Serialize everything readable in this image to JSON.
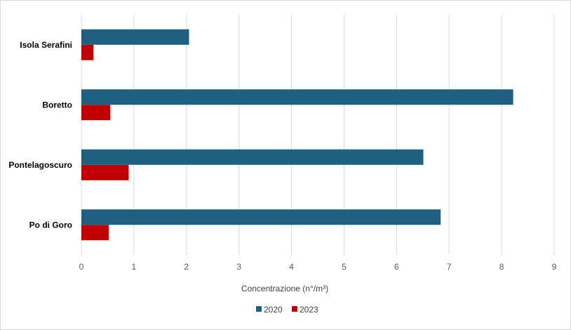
{
  "chart_data": {
    "type": "bar",
    "orientation": "horizontal",
    "categories": [
      "Isola Serafini",
      "Boretto",
      "Pontelagoscuro",
      "Po di Goro"
    ],
    "series": [
      {
        "name": "2020",
        "values": [
          2.05,
          8.22,
          6.51,
          6.84
        ],
        "color": "#1f5f80"
      },
      {
        "name": "2023",
        "values": [
          0.23,
          0.55,
          0.9,
          0.52
        ],
        "color": "#c00000"
      }
    ],
    "xlabel": "Concentrazione (n°/m³)",
    "ylabel": "",
    "xlim": [
      0,
      9
    ],
    "xticks": [
      "0",
      "1",
      "2",
      "3",
      "4",
      "5",
      "6",
      "7",
      "8",
      "9"
    ],
    "grid": true,
    "legend": "bottom"
  }
}
